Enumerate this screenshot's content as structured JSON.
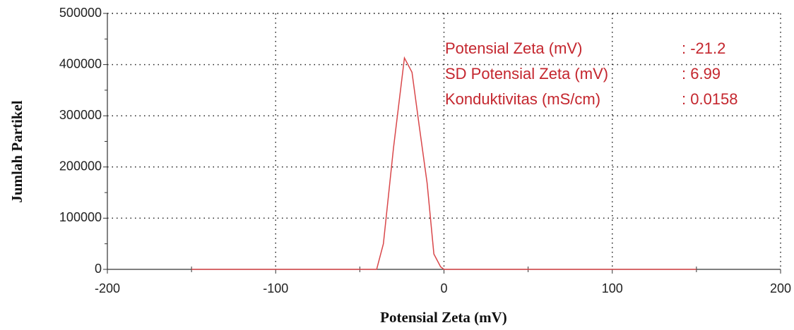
{
  "chart_data": {
    "type": "line",
    "xlabel": "Potensial Zeta (mV)",
    "ylabel": "Jumlah Partikel",
    "x": [
      -150,
      -100,
      -50,
      -40,
      -36,
      -30,
      -23.5,
      -19,
      -14.7,
      -10,
      -6,
      -2,
      0,
      50,
      100,
      150
    ],
    "series": [
      {
        "name": "Jumlah Partikel",
        "color": "#d9474a",
        "values": [
          0,
          0,
          0,
          0,
          50000,
          237000,
          413000,
          385000,
          280000,
          168000,
          30000,
          5000,
          0,
          0,
          0,
          0
        ]
      }
    ],
    "xlim": [
      -200,
      200
    ],
    "xticks": [
      -200,
      -100,
      0,
      100,
      200
    ],
    "xminorticks": [
      -150,
      -50,
      50,
      150
    ],
    "ylim": [
      0,
      500000
    ],
    "yticks": [
      0,
      100000,
      200000,
      300000,
      400000,
      500000
    ],
    "yminorticks": [
      50000,
      150000,
      250000,
      350000,
      450000
    ],
    "grid": true,
    "annotations": [
      {
        "label": "Potensial Zeta (mV)",
        "value": ": -21.2"
      },
      {
        "label": "SD Potensial Zeta (mV)",
        "value": ": 6.99"
      },
      {
        "label": "Konduktivitas (mS/cm)",
        "value": ": 0.0158"
      }
    ]
  }
}
